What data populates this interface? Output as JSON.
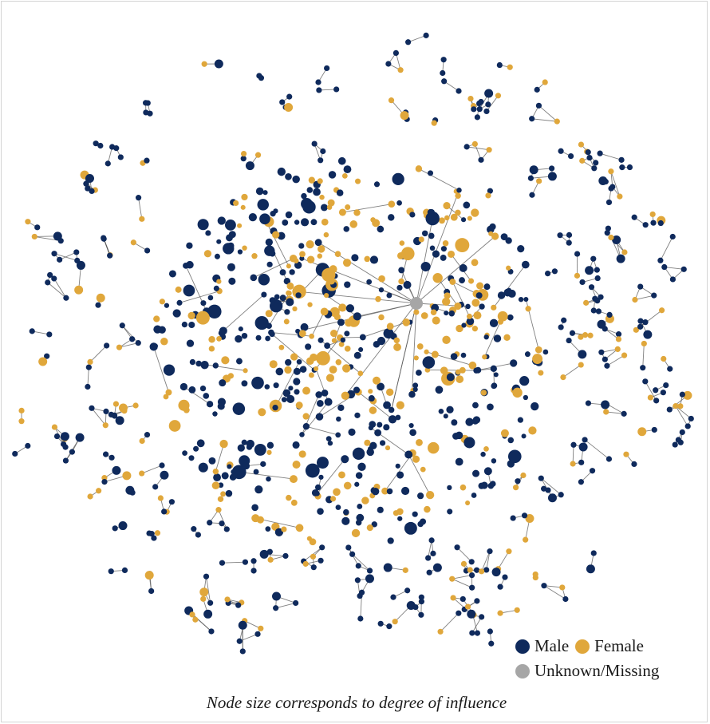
{
  "colors": {
    "male": "#0f2a5c",
    "female": "#e0a73b",
    "unknown": "#a6a6a6",
    "edge": "#555555"
  },
  "legend": {
    "male_label": "Male",
    "female_label": "Female",
    "unknown_label": "Unknown/Missing"
  },
  "caption": "Node size corresponds to degree of influence"
}
